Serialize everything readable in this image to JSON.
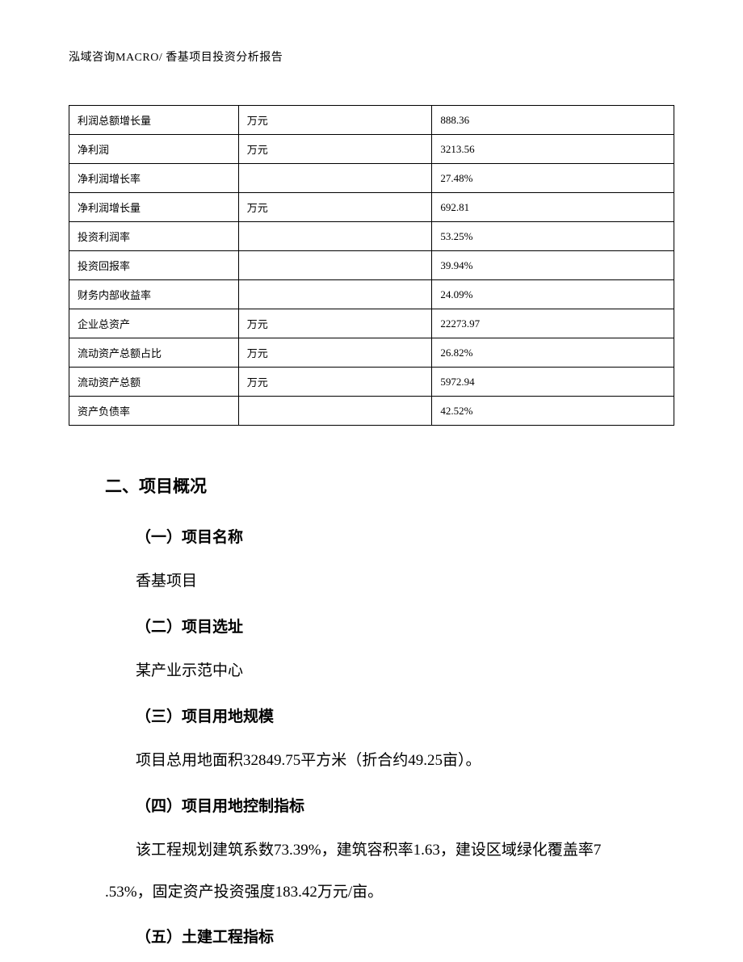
{
  "header": {
    "text": "泓域咨询MACRO/   香基项目投资分析报告"
  },
  "table": {
    "rows": [
      {
        "label": "利润总额增长量",
        "unit": "万元",
        "value": "888.36"
      },
      {
        "label": "净利润",
        "unit": "万元",
        "value": "3213.56"
      },
      {
        "label": "净利润增长率",
        "unit": "",
        "value": "27.48%"
      },
      {
        "label": "净利润增长量",
        "unit": "万元",
        "value": "692.81"
      },
      {
        "label": "投资利润率",
        "unit": "",
        "value": "53.25%"
      },
      {
        "label": "投资回报率",
        "unit": "",
        "value": "39.94%"
      },
      {
        "label": "财务内部收益率",
        "unit": "",
        "value": "24.09%"
      },
      {
        "label": "企业总资产",
        "unit": "万元",
        "value": "22273.97"
      },
      {
        "label": "流动资产总额占比",
        "unit": "万元",
        "value": "26.82%"
      },
      {
        "label": "流动资产总额",
        "unit": "万元",
        "value": "5972.94"
      },
      {
        "label": "资产负债率",
        "unit": "",
        "value": "42.52%"
      }
    ]
  },
  "sections": {
    "main_title": "二、项目概况",
    "sub1_title": "（一）项目名称",
    "sub1_body": "香基项目",
    "sub2_title": "（二）项目选址",
    "sub2_body": "某产业示范中心",
    "sub3_title": "（三）项目用地规模",
    "sub3_body": "项目总用地面积32849.75平方米（折合约49.25亩）。",
    "sub4_title": "（四）项目用地控制指标",
    "sub4_body_line1": "该工程规划建筑系数73.39%，建筑容积率1.63，建设区域绿化覆盖率7",
    "sub4_body_line2": ".53%，固定资产投资强度183.42万元/亩。",
    "sub5_title": "（五）土建工程指标"
  }
}
